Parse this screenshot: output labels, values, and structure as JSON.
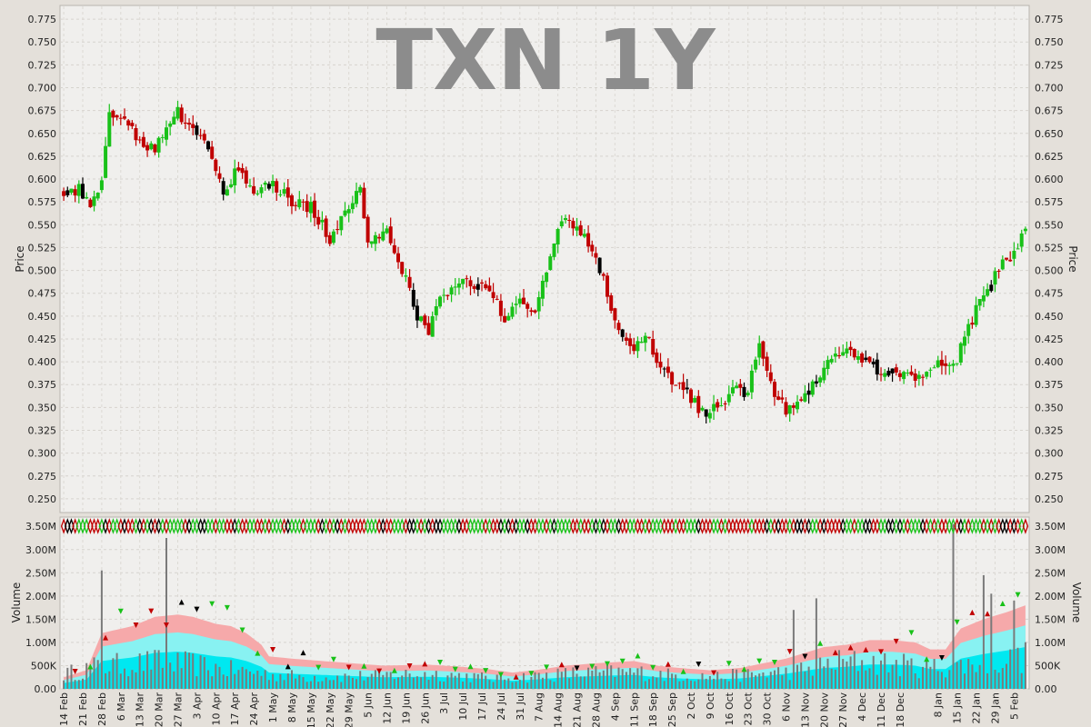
{
  "chart_data": {
    "type": "candlestick",
    "title": "TXN 1Y",
    "price_axis": {
      "label": "Price",
      "ylim": [
        0.235,
        0.79
      ],
      "ticks": [
        "0.250",
        "0.275",
        "0.300",
        "0.325",
        "0.350",
        "0.375",
        "0.400",
        "0.425",
        "0.450",
        "0.475",
        "0.500",
        "0.525",
        "0.550",
        "0.575",
        "0.600",
        "0.625",
        "0.650",
        "0.675",
        "0.700",
        "0.725",
        "0.750",
        "0.775"
      ]
    },
    "volume_axis": {
      "label": "Volume",
      "ylim": [
        0,
        3.7
      ],
      "unit": "M",
      "ticks": [
        "0.00",
        "500K",
        "1.00M",
        "1.50M",
        "2.00M",
        "2.50M",
        "3.00M",
        "3.50M"
      ]
    },
    "x_ticks": [
      "14 Feb",
      "21 Feb",
      "28 Feb",
      "6 Mar",
      "13 Mar",
      "20 Mar",
      "27 Mar",
      "3 Apr",
      "10 Apr",
      "17 Apr",
      "24 Apr",
      "1 May",
      "8 May",
      "15 May",
      "22 May",
      "29 May",
      "5 Jun",
      "12 Jun",
      "19 Jun",
      "26 Jun",
      "3 Jul",
      "10 Jul",
      "17 Jul",
      "24 Jul",
      "31 Jul",
      "7 Aug",
      "14 Aug",
      "21 Aug",
      "28 Aug",
      "4 Sep",
      "11 Sep",
      "18 Sep",
      "25 Sep",
      "2 Oct",
      "9 Oct",
      "16 Oct",
      "23 Oct",
      "30 Oct",
      "6 Nov",
      "13 Nov",
      "20 Nov",
      "27 Nov",
      "4 Dec",
      "11 Dec",
      "18 Dec",
      "8 Jan",
      "15 Jan",
      "22 Jan",
      "29 Jan",
      "5 Feb"
    ],
    "x_tick_positions": [
      0,
      5,
      10,
      15,
      20,
      25,
      30,
      35,
      40,
      45,
      50,
      55,
      60,
      65,
      70,
      75,
      80,
      85,
      90,
      95,
      100,
      105,
      110,
      115,
      120,
      125,
      130,
      135,
      140,
      145,
      150,
      155,
      160,
      165,
      170,
      175,
      180,
      185,
      190,
      195,
      200,
      205,
      210,
      215,
      220,
      230,
      235,
      240,
      245,
      250
    ],
    "price_anchors": [
      [
        0,
        0.585
      ],
      [
        4,
        0.59
      ],
      [
        7,
        0.568
      ],
      [
        10,
        0.595
      ],
      [
        12,
        0.67
      ],
      [
        16,
        0.66
      ],
      [
        20,
        0.645
      ],
      [
        24,
        0.63
      ],
      [
        27,
        0.66
      ],
      [
        30,
        0.675
      ],
      [
        34,
        0.65
      ],
      [
        38,
        0.635
      ],
      [
        42,
        0.59
      ],
      [
        46,
        0.61
      ],
      [
        50,
        0.585
      ],
      [
        55,
        0.595
      ],
      [
        60,
        0.575
      ],
      [
        65,
        0.57
      ],
      [
        70,
        0.535
      ],
      [
        75,
        0.565
      ],
      [
        78,
        0.59
      ],
      [
        80,
        0.535
      ],
      [
        85,
        0.545
      ],
      [
        90,
        0.49
      ],
      [
        93,
        0.45
      ],
      [
        96,
        0.435
      ],
      [
        100,
        0.475
      ],
      [
        104,
        0.49
      ],
      [
        108,
        0.485
      ],
      [
        112,
        0.475
      ],
      [
        116,
        0.45
      ],
      [
        120,
        0.47
      ],
      [
        124,
        0.455
      ],
      [
        128,
        0.52
      ],
      [
        132,
        0.56
      ],
      [
        136,
        0.545
      ],
      [
        140,
        0.515
      ],
      [
        144,
        0.46
      ],
      [
        148,
        0.42
      ],
      [
        150,
        0.41
      ],
      [
        153,
        0.43
      ],
      [
        156,
        0.4
      ],
      [
        160,
        0.375
      ],
      [
        164,
        0.365
      ],
      [
        168,
        0.345
      ],
      [
        172,
        0.35
      ],
      [
        176,
        0.37
      ],
      [
        180,
        0.365
      ],
      [
        183,
        0.42
      ],
      [
        186,
        0.375
      ],
      [
        190,
        0.345
      ],
      [
        193,
        0.35
      ],
      [
        196,
        0.37
      ],
      [
        200,
        0.395
      ],
      [
        204,
        0.41
      ],
      [
        208,
        0.41
      ],
      [
        212,
        0.395
      ],
      [
        216,
        0.39
      ],
      [
        220,
        0.385
      ],
      [
        224,
        0.38
      ],
      [
        228,
        0.395
      ],
      [
        232,
        0.4
      ],
      [
        235,
        0.405
      ],
      [
        238,
        0.44
      ],
      [
        242,
        0.47
      ],
      [
        246,
        0.5
      ],
      [
        250,
        0.52
      ],
      [
        253,
        0.545
      ]
    ],
    "volume_anchors": [
      [
        0,
        0.3
      ],
      [
        8,
        0.45
      ],
      [
        16,
        0.5
      ],
      [
        24,
        0.55
      ],
      [
        34,
        0.5
      ],
      [
        42,
        0.4
      ],
      [
        50,
        0.35
      ],
      [
        54,
        0.3
      ],
      [
        62,
        0.25
      ],
      [
        75,
        0.25
      ],
      [
        90,
        0.3
      ],
      [
        100,
        0.3
      ],
      [
        112,
        0.22
      ],
      [
        122,
        0.25
      ],
      [
        135,
        0.32
      ],
      [
        150,
        0.35
      ],
      [
        160,
        0.28
      ],
      [
        172,
        0.25
      ],
      [
        182,
        0.3
      ],
      [
        190,
        0.35
      ],
      [
        196,
        0.4
      ],
      [
        204,
        0.55
      ],
      [
        212,
        0.55
      ],
      [
        218,
        0.5
      ],
      [
        226,
        0.45
      ],
      [
        234,
        0.45
      ],
      [
        242,
        0.55
      ],
      [
        250,
        0.6
      ],
      [
        253,
        0.65
      ]
    ],
    "volume_spikes": [
      [
        10,
        2.55
      ],
      [
        27,
        3.25
      ],
      [
        192,
        1.7
      ],
      [
        198,
        1.95
      ],
      [
        234,
        3.55
      ],
      [
        242,
        2.45
      ],
      [
        244,
        2.05
      ],
      [
        250,
        1.9
      ]
    ],
    "volume_band_anchors": [
      [
        0,
        0.25
      ],
      [
        6,
        0.4
      ],
      [
        10,
        1.2
      ],
      [
        18,
        1.35
      ],
      [
        24,
        1.55
      ],
      [
        30,
        1.6
      ],
      [
        34,
        1.55
      ],
      [
        40,
        1.4
      ],
      [
        44,
        1.35
      ],
      [
        48,
        1.2
      ],
      [
        52,
        0.95
      ],
      [
        54,
        0.7
      ],
      [
        60,
        0.65
      ],
      [
        68,
        0.6
      ],
      [
        76,
        0.55
      ],
      [
        84,
        0.5
      ],
      [
        96,
        0.52
      ],
      [
        104,
        0.48
      ],
      [
        112,
        0.42
      ],
      [
        118,
        0.35
      ],
      [
        124,
        0.4
      ],
      [
        132,
        0.5
      ],
      [
        140,
        0.55
      ],
      [
        150,
        0.6
      ],
      [
        156,
        0.5
      ],
      [
        162,
        0.45
      ],
      [
        170,
        0.4
      ],
      [
        178,
        0.45
      ],
      [
        184,
        0.55
      ],
      [
        190,
        0.65
      ],
      [
        196,
        0.8
      ],
      [
        200,
        0.9
      ],
      [
        206,
        0.95
      ],
      [
        212,
        1.05
      ],
      [
        218,
        1.05
      ],
      [
        224,
        1.0
      ],
      [
        228,
        0.85
      ],
      [
        232,
        0.85
      ],
      [
        236,
        1.3
      ],
      [
        242,
        1.5
      ],
      [
        248,
        1.65
      ],
      [
        253,
        1.8
      ]
    ],
    "colors": {
      "up": "#19c119",
      "down": "#c00000",
      "neutral": "#000000",
      "volume_bar": "#7a7a7a",
      "band_outer": "#f6a9aa",
      "band_mid": "#88f2f2",
      "band_inner": "#00e8f0",
      "background": "#f0efed",
      "frame": "#e4e0da",
      "title": "#8c8c8c"
    },
    "grid": true
  }
}
